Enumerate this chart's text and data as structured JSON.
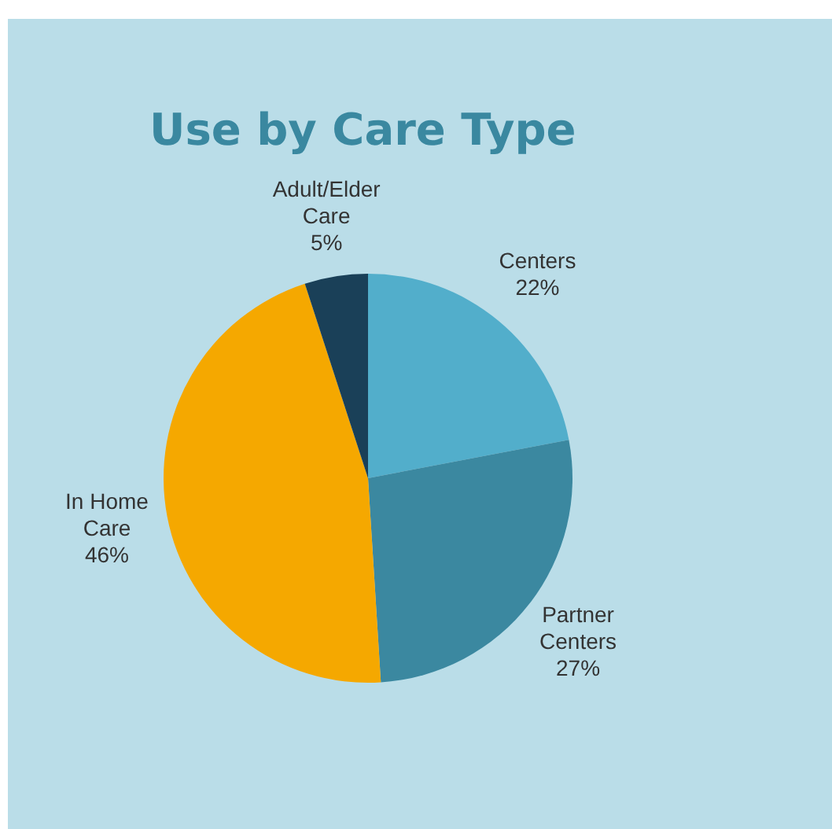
{
  "chart_data": {
    "type": "pie",
    "title": "Use by Care Type",
    "categories": [
      "Centers",
      "Partner Centers",
      "In Home Care",
      "Adult/Elder Care"
    ],
    "values": [
      22,
      27,
      46,
      5
    ],
    "value_labels": [
      "22%",
      "27%",
      "46%",
      "5%"
    ],
    "colors": [
      "#52aecb",
      "#3b88a0",
      "#f5a800",
      "#1a4058"
    ]
  }
}
